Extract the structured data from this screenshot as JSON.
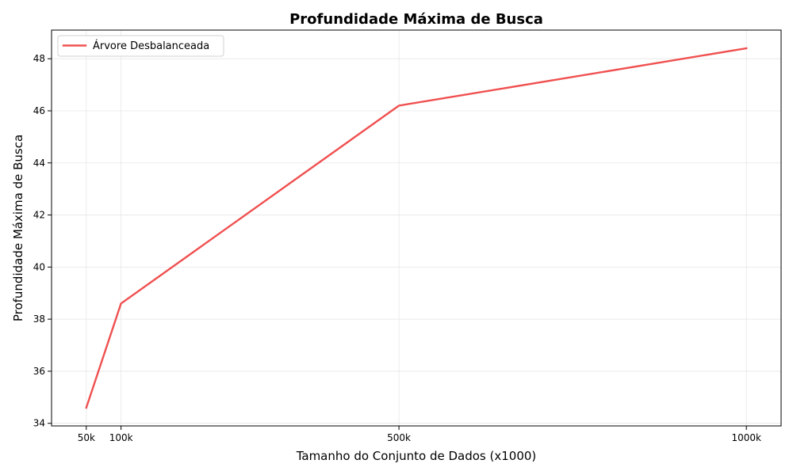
{
  "chart_data": {
    "type": "line",
    "title": "Profundidade Máxima de Busca",
    "xlabel": "Tamanho do Conjunto de Dados (x1000)",
    "ylabel": "Profundidade Máxima de Busca",
    "x": [
      50,
      100,
      500,
      1000
    ],
    "x_tick_labels": [
      "50k",
      "100k",
      "500k",
      "1000k"
    ],
    "xlim": [
      0,
      1050
    ],
    "ylim": [
      33.9,
      49.1
    ],
    "y_ticks": [
      34,
      36,
      38,
      40,
      42,
      44,
      46,
      48
    ],
    "grid": true,
    "legend_position": "top-left",
    "series": [
      {
        "name": "Árvore Desbalanceada",
        "color": "#f05050",
        "values": [
          34.6,
          38.6,
          46.2,
          48.4
        ]
      }
    ]
  }
}
